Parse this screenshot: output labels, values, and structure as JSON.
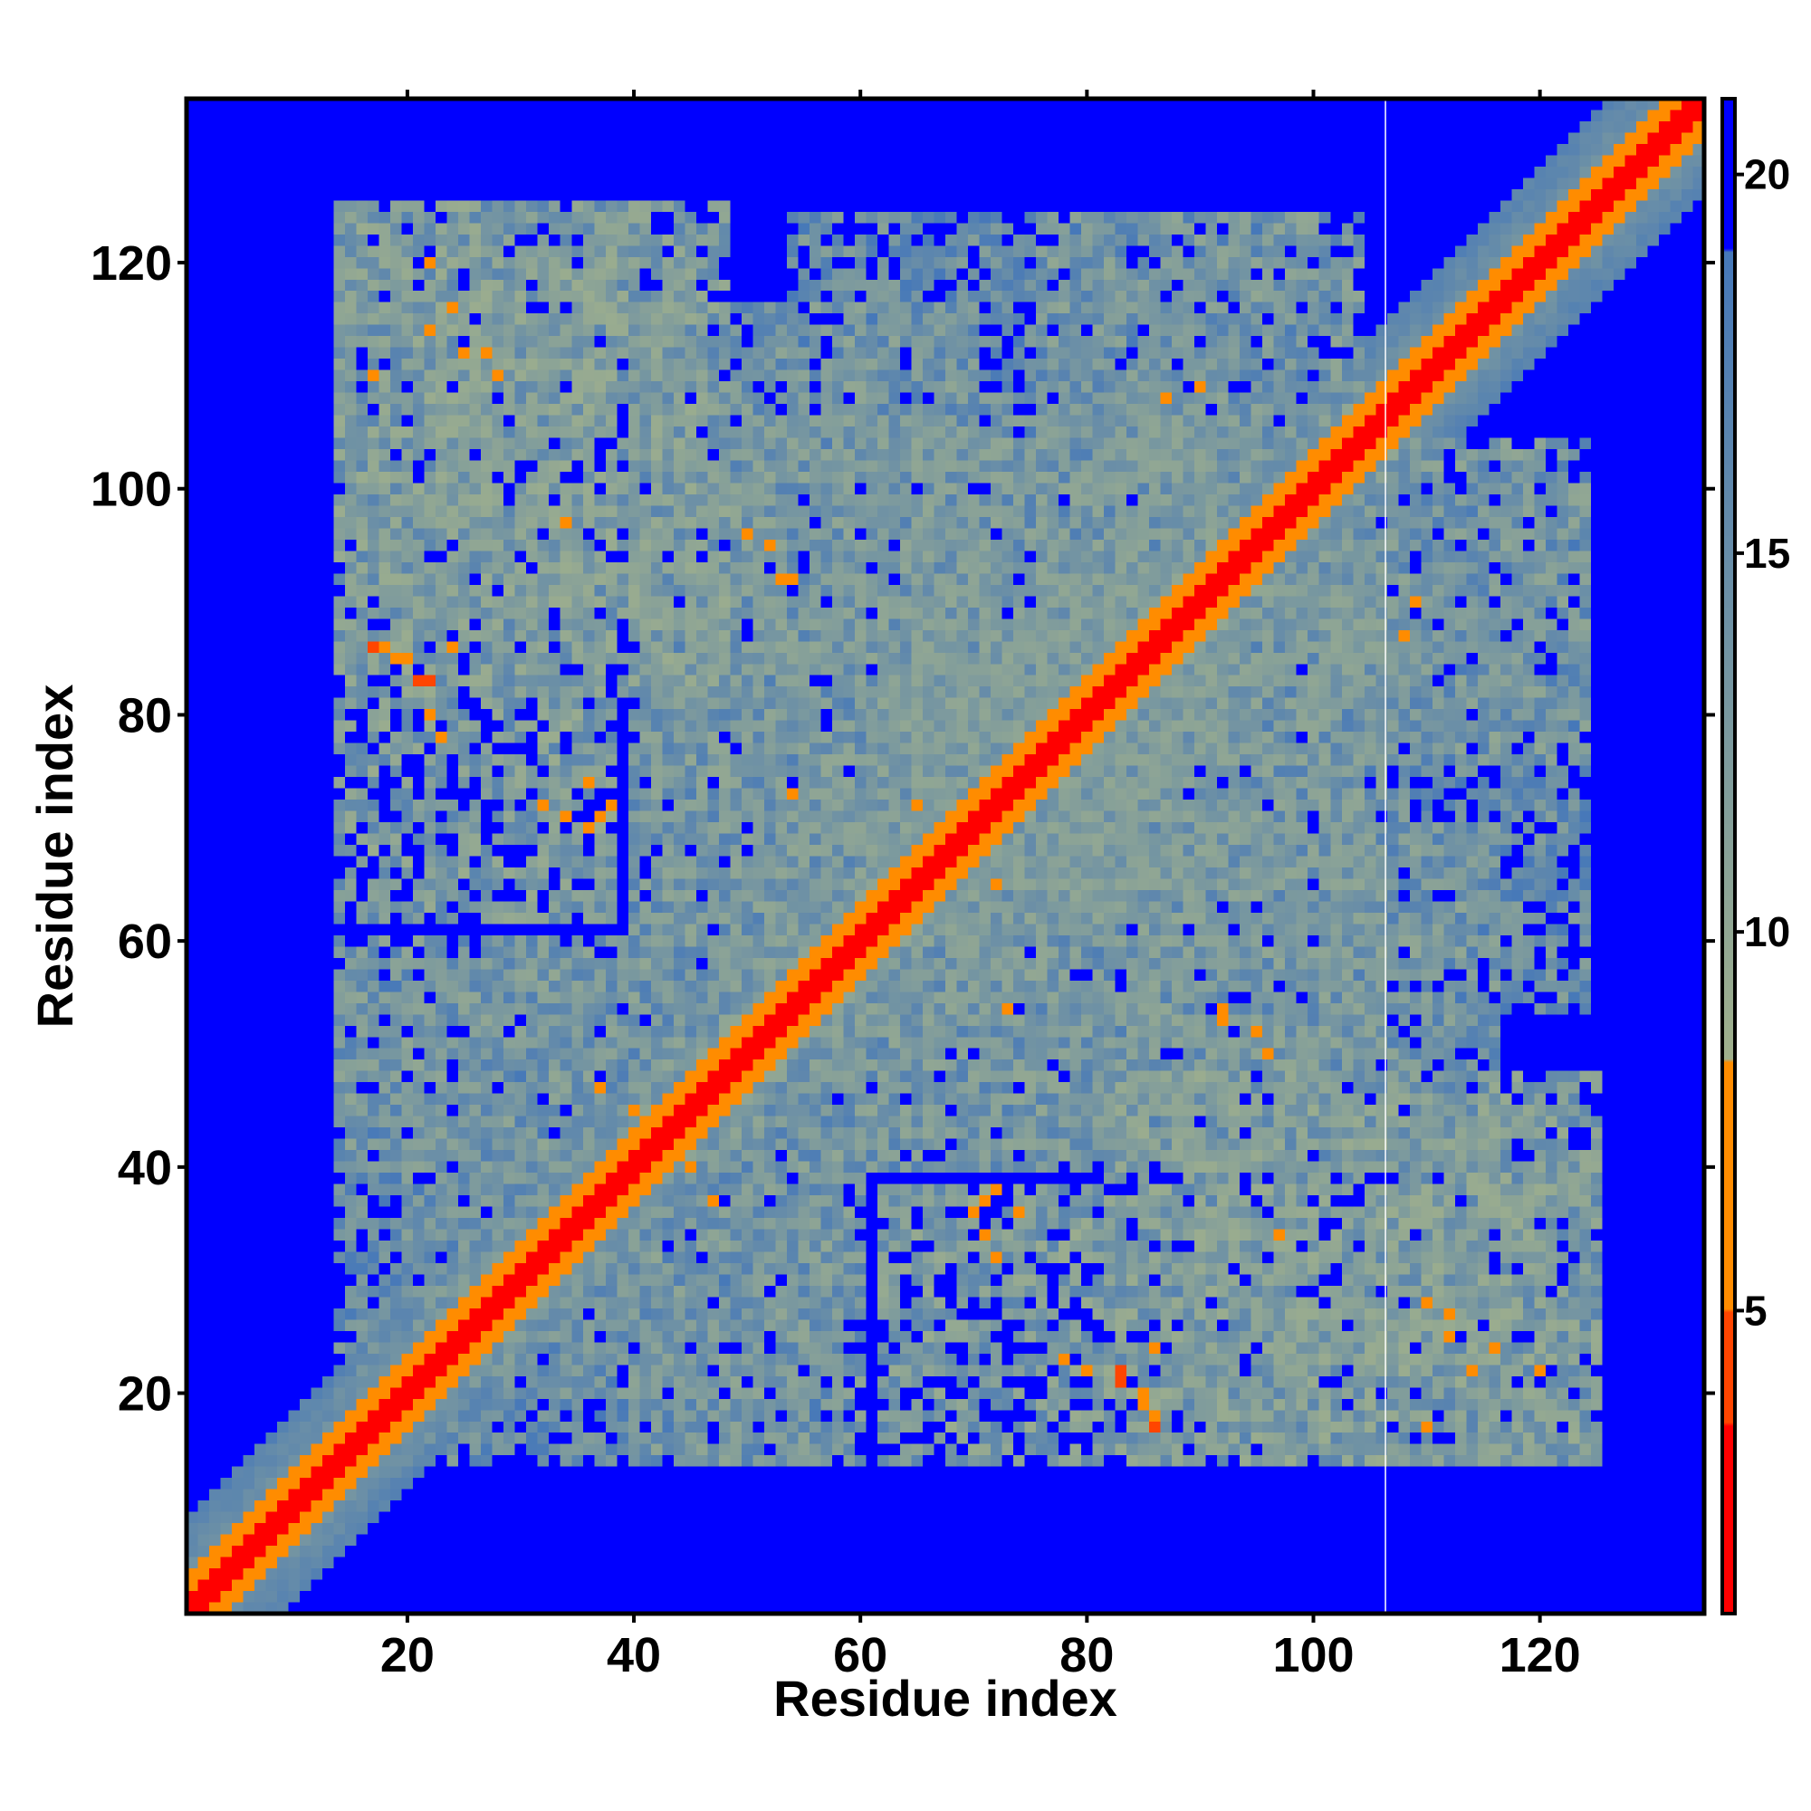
{
  "chart_data": {
    "type": "heatmap",
    "title": "",
    "xlabel": "Residue index",
    "ylabel": "Residue index",
    "xlim": [
      1,
      134
    ],
    "ylim": [
      1,
      134
    ],
    "x_ticks": [
      "20",
      "40",
      "60",
      "80",
      "100",
      "120"
    ],
    "y_ticks": [
      "20",
      "40",
      "60",
      "80",
      "100",
      "120"
    ],
    "colorbar": {
      "ticks": [
        "5",
        "10",
        "15",
        "20"
      ],
      "range": [
        1,
        21
      ],
      "colors": {
        "near": "#ff0000",
        "mid": "#ff8c00",
        "far": "#8fa894",
        "farther": "#4f7fb0",
        "background": "#0000ff"
      }
    },
    "n_residues": 134,
    "diagonal_band": {
      "value_on_diagonal": 2,
      "value_near": 6,
      "value_band": 11,
      "band_width_residues": 8
    },
    "contact_regions": [
      {
        "x_range": [
          14,
          38
        ],
        "y_range": [
          62,
          124
        ],
        "typical_value": 13
      },
      {
        "x_range": [
          82,
          125
        ],
        "y_range": [
          14,
          48
        ],
        "typical_value": 13
      },
      {
        "x_range": [
          40,
          60
        ],
        "y_range": [
          14,
          60
        ],
        "typical_value": 14
      },
      {
        "x_range": [
          60,
          106
        ],
        "y_range": [
          40,
          92
        ],
        "typical_value": 14
      },
      {
        "x_range": [
          40,
          70
        ],
        "y_range": [
          60,
          116
        ],
        "typical_value": 14
      },
      {
        "x_range": [
          76,
          104
        ],
        "y_range": [
          64,
          124
        ],
        "typical_value": 14
      },
      {
        "x_range": [
          104,
          124
        ],
        "y_range": [
          54,
          100
        ],
        "typical_value": 15
      },
      {
        "x_range": [
          14,
          40
        ],
        "y_range": [
          20,
          58
        ],
        "typical_value": 15
      }
    ],
    "close_contacts": [
      {
        "x": 17,
        "y": 86,
        "value": 5
      },
      {
        "x": 19,
        "y": 85,
        "value": 6
      },
      {
        "x": 21,
        "y": 83,
        "value": 5
      },
      {
        "x": 22,
        "y": 80,
        "value": 6
      },
      {
        "x": 23,
        "y": 78,
        "value": 7
      },
      {
        "x": 24,
        "y": 116,
        "value": 7
      },
      {
        "x": 25,
        "y": 112,
        "value": 6
      },
      {
        "x": 27,
        "y": 112,
        "value": 7
      },
      {
        "x": 32,
        "y": 72,
        "value": 6
      },
      {
        "x": 36,
        "y": 70,
        "value": 6
      },
      {
        "x": 37,
        "y": 71,
        "value": 7
      },
      {
        "x": 34,
        "y": 97,
        "value": 7
      },
      {
        "x": 50,
        "y": 96,
        "value": 7
      },
      {
        "x": 53,
        "y": 92,
        "value": 7
      },
      {
        "x": 54,
        "y": 73,
        "value": 7
      },
      {
        "x": 65,
        "y": 72,
        "value": 7
      },
      {
        "x": 70,
        "y": 70,
        "value": 7
      },
      {
        "x": 72,
        "y": 38,
        "value": 6
      },
      {
        "x": 74,
        "y": 36,
        "value": 7
      },
      {
        "x": 71,
        "y": 34,
        "value": 6
      },
      {
        "x": 80,
        "y": 22,
        "value": 6
      },
      {
        "x": 83,
        "y": 22,
        "value": 5
      },
      {
        "x": 85,
        "y": 20,
        "value": 6
      },
      {
        "x": 86,
        "y": 18,
        "value": 7
      },
      {
        "x": 86,
        "y": 24,
        "value": 7
      },
      {
        "x": 92,
        "y": 54,
        "value": 7
      },
      {
        "x": 95,
        "y": 52,
        "value": 7
      },
      {
        "x": 110,
        "y": 28,
        "value": 7
      },
      {
        "x": 112,
        "y": 25,
        "value": 6
      },
      {
        "x": 114,
        "y": 22,
        "value": 7
      },
      {
        "x": 109,
        "y": 90,
        "value": 7
      },
      {
        "x": 108,
        "y": 87,
        "value": 7
      },
      {
        "x": 120,
        "y": 22,
        "value": 7
      },
      {
        "x": 17,
        "y": 110,
        "value": 7
      },
      {
        "x": 45,
        "y": 40,
        "value": 6
      },
      {
        "x": 47,
        "y": 37,
        "value": 7
      }
    ],
    "highlight_line": {
      "x": 107,
      "color": "#ffffff"
    }
  }
}
